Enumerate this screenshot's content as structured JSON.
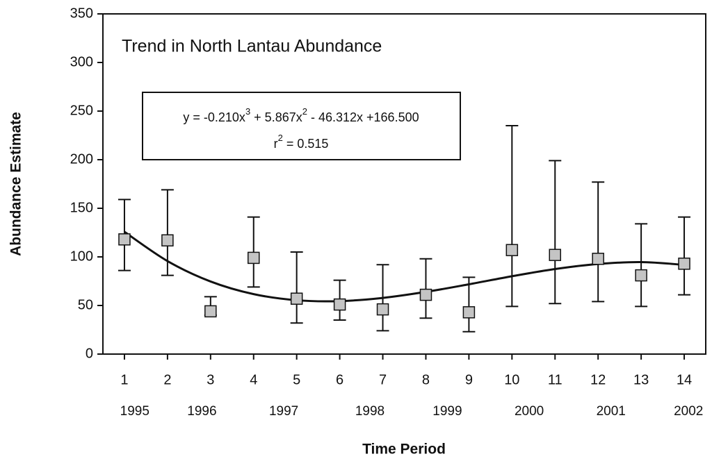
{
  "chart_data": {
    "type": "scatter-errorbar",
    "title": "Trend in North Lantau Abundance",
    "x_label": "Time  Period",
    "y_label": "Abundance  Estimate",
    "equation": [
      "y =  -0.210x",
      "3",
      " + 5.867x",
      "2",
      " - 46.312x +166.500"
    ],
    "r_squared": [
      "r",
      "2",
      " = 0.515"
    ],
    "xlim": [
      0.5,
      14.5
    ],
    "ylim": [
      0,
      350
    ],
    "xticks": [
      1,
      2,
      3,
      4,
      5,
      6,
      7,
      8,
      9,
      10,
      11,
      12,
      13,
      14
    ],
    "yticks": [
      0,
      50,
      100,
      150,
      200,
      250,
      300,
      350
    ],
    "year_ticks": [
      {
        "value": 1.24,
        "label": "1995"
      },
      {
        "value": 2.8,
        "label": "1996"
      },
      {
        "value": 4.7,
        "label": "1997"
      },
      {
        "value": 6.7,
        "label": "1998"
      },
      {
        "value": 8.5,
        "label": "1999"
      },
      {
        "value": 10.4,
        "label": "2000"
      },
      {
        "value": 12.3,
        "label": "2001"
      },
      {
        "value": 14.1,
        "label": "2002"
      }
    ],
    "x": [
      1,
      2,
      3,
      4,
      5,
      6,
      7,
      8,
      9,
      10,
      11,
      12,
      13,
      14
    ],
    "series": [
      {
        "color": "#c4c4c4",
        "values": [
          118,
          117,
          44,
          99,
          57,
          51,
          46,
          61,
          43,
          107,
          102,
          98,
          81,
          93
        ],
        "upper": [
          159,
          169,
          59,
          141,
          105,
          76,
          92,
          98,
          79,
          235,
          199,
          177,
          134,
          141
        ],
        "lower": [
          86,
          81,
          40,
          69,
          32,
          35,
          24,
          37,
          23,
          49,
          52,
          54,
          49,
          61
        ]
      }
    ],
    "fit": {
      "color": "#111111",
      "values": [
        125.8,
        95.7,
        74.7,
        61.7,
        55.4,
        54.5,
        57.8,
        64.0,
        71.8,
        80.1,
        87.5,
        92.7,
        94.6,
        91.8
      ]
    }
  }
}
